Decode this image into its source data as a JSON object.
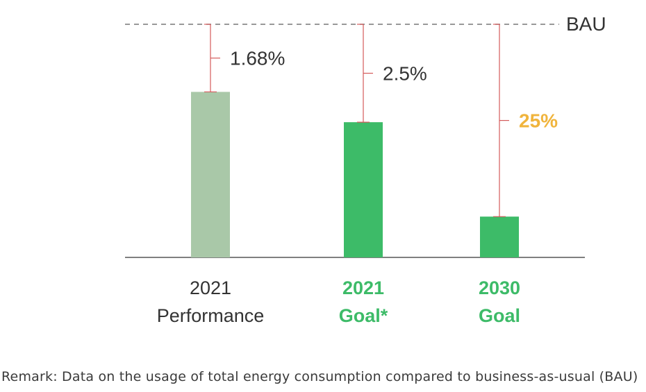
{
  "chart_data": {
    "type": "bar",
    "categories": [
      {
        "line1": "2021",
        "line2": "Performance",
        "highlight": false
      },
      {
        "line1": "2021",
        "line2": "Goal*",
        "highlight": true
      },
      {
        "line1": "2030",
        "line2": "Goal",
        "highlight": true
      }
    ],
    "reference": {
      "label": "BAU",
      "value": 100
    },
    "values": [
      71,
      58,
      17.5
    ],
    "reductions": [
      "1.68%",
      "2.5%",
      "25%"
    ],
    "reduction_colors": [
      "#333333",
      "#333333",
      "#f0b43c"
    ],
    "bar_colors": [
      "#a9c8a8",
      "#3dbb68",
      "#3dbb68"
    ],
    "category_label_colors": [
      "#333333",
      "#3dbb68",
      "#3dbb68"
    ],
    "bracket_color": "#d45a5a",
    "ylim": [
      0,
      100
    ],
    "grid": false
  },
  "remark": "Remark: Data on the usage of total energy consumption compared to business-as-usual (BAU)"
}
